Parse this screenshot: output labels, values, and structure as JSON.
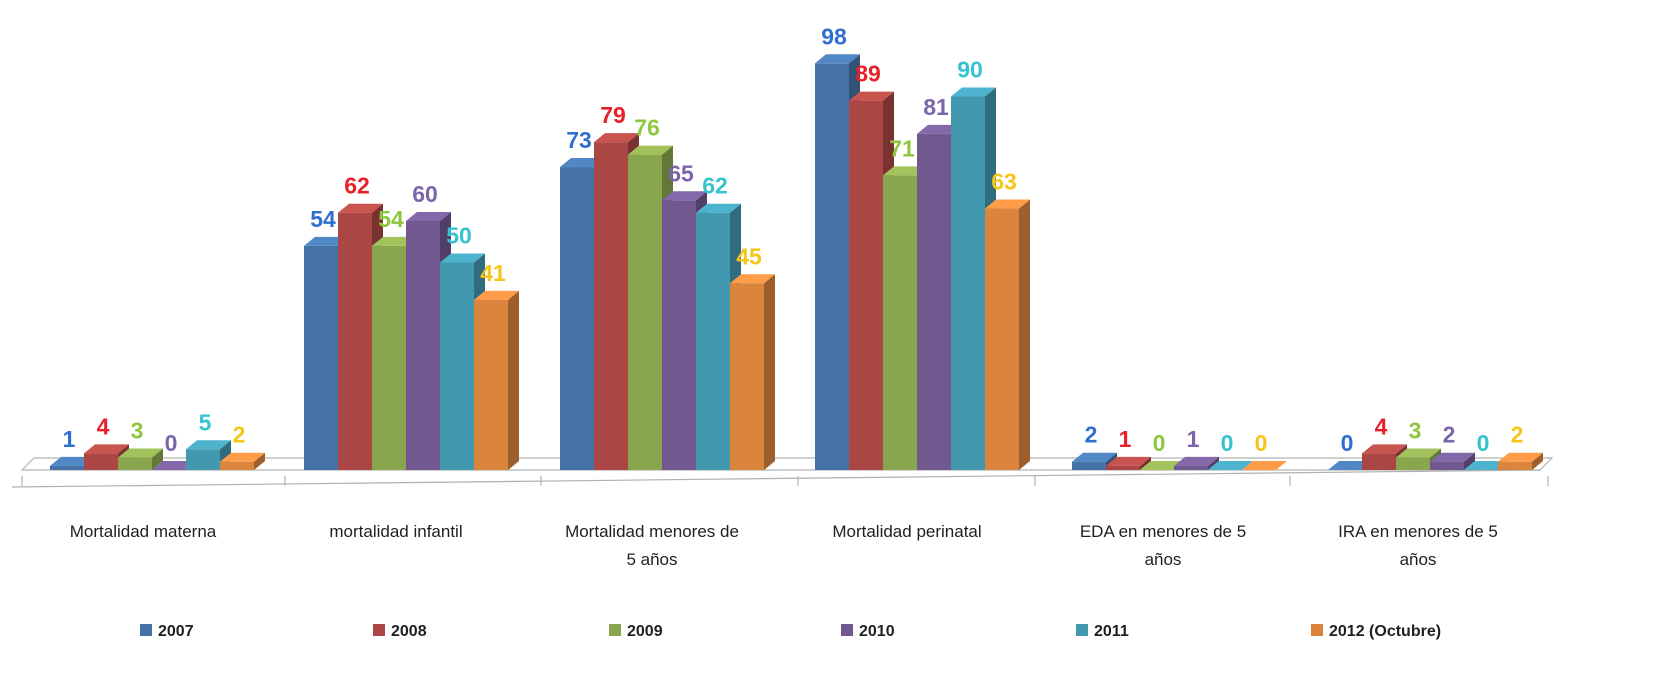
{
  "chart_data": {
    "type": "bar",
    "title": "",
    "xlabel": "",
    "ylabel": "",
    "ylim": [
      0,
      100
    ],
    "grid": false,
    "legend_position": "bottom",
    "categories": [
      [
        "Mortalidad materna"
      ],
      [
        "mortalidad infantil"
      ],
      [
        "Mortalidad menores de",
        "5 años"
      ],
      [
        "Mortalidad perinatal"
      ],
      [
        "EDA en menores de 5",
        "años"
      ],
      [
        "IRA en menores de 5",
        "años"
      ]
    ],
    "series": [
      {
        "name": "2007",
        "color": "#4572A7",
        "label_color": "#2F6FCF",
        "values": [
          1,
          54,
          73,
          98,
          2,
          0
        ]
      },
      {
        "name": "2008",
        "color": "#AA4643",
        "label_color": "#E8202A",
        "values": [
          4,
          62,
          79,
          89,
          1,
          4
        ]
      },
      {
        "name": "2009",
        "color": "#89A54E",
        "label_color": "#8DC63F",
        "values": [
          3,
          54,
          76,
          71,
          0,
          3
        ]
      },
      {
        "name": "2010",
        "color": "#71588F",
        "label_color": "#7A66A8",
        "values": [
          0,
          60,
          65,
          81,
          1,
          2
        ]
      },
      {
        "name": "2011",
        "color": "#4198AF",
        "label_color": "#36C3D0",
        "values": [
          5,
          50,
          62,
          90,
          0,
          0
        ]
      },
      {
        "name": "2012 (Octubre)",
        "color": "#DB843D",
        "label_color": "#F5C518",
        "values": [
          2,
          41,
          45,
          63,
          0,
          2
        ]
      }
    ]
  }
}
